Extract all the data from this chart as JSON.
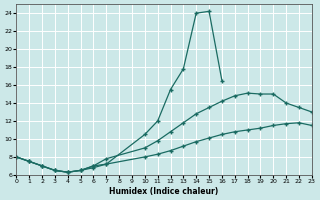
{
  "xlabel": "Humidex (Indice chaleur)",
  "xlim": [
    0,
    23
  ],
  "ylim": [
    6,
    25
  ],
  "xticks": [
    0,
    1,
    2,
    3,
    4,
    5,
    6,
    7,
    8,
    9,
    10,
    11,
    12,
    13,
    14,
    15,
    16,
    17,
    18,
    19,
    20,
    21,
    22,
    23
  ],
  "yticks": [
    6,
    8,
    10,
    12,
    14,
    16,
    18,
    20,
    22,
    24
  ],
  "bg_color": "#cce8e8",
  "line_color": "#1a6b62",
  "grid_color": "#ffffff",
  "curve1_x": [
    0,
    1,
    2,
    3,
    4,
    5,
    6,
    7,
    10,
    11,
    12,
    13,
    14,
    15,
    16
  ],
  "curve1_y": [
    8.0,
    7.5,
    7.0,
    6.5,
    6.3,
    6.5,
    7.0,
    7.2,
    10.5,
    12.0,
    15.5,
    17.8,
    24.0,
    24.2,
    16.5
  ],
  "curve2_x": [
    0,
    1,
    2,
    3,
    4,
    5,
    6,
    7,
    10,
    11,
    12,
    13,
    14,
    15,
    16,
    17,
    18,
    19,
    20,
    21,
    22,
    23
  ],
  "curve2_y": [
    8.0,
    7.5,
    7.0,
    6.5,
    6.3,
    6.5,
    7.0,
    7.8,
    9.0,
    9.8,
    10.8,
    11.8,
    12.8,
    13.5,
    14.2,
    14.8,
    15.1,
    15.0,
    15.0,
    14.0,
    13.5,
    13.0
  ],
  "curve3_x": [
    0,
    1,
    2,
    3,
    4,
    5,
    6,
    7,
    10,
    11,
    12,
    13,
    14,
    15,
    16,
    17,
    18,
    19,
    20,
    21,
    22,
    23
  ],
  "curve3_y": [
    8.0,
    7.5,
    7.0,
    6.5,
    6.3,
    6.5,
    6.8,
    7.2,
    8.0,
    8.3,
    8.7,
    9.2,
    9.7,
    10.1,
    10.5,
    10.8,
    11.0,
    11.2,
    11.5,
    11.7,
    11.8,
    11.5
  ]
}
